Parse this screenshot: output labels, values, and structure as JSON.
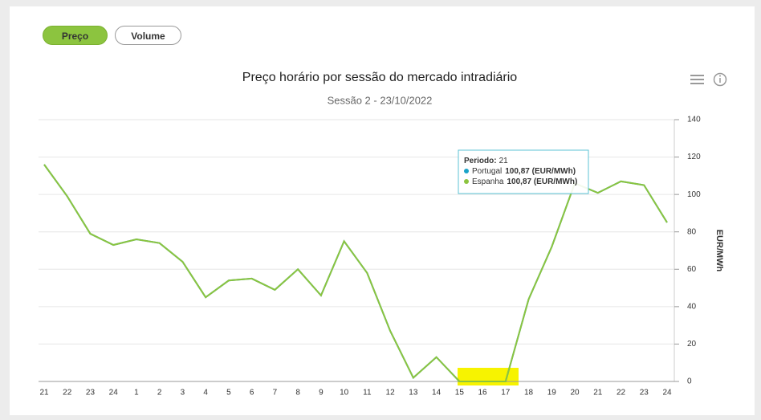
{
  "buttons": [
    "Preço",
    "Volume"
  ],
  "chart_data": {
    "type": "line",
    "title": "Preço horário por sessão do mercado intradiário",
    "subtitle": "Sessão 2 - 23/10/2022",
    "y_axis_label": "EUR/MWh",
    "categories": [
      "21",
      "22",
      "23",
      "24",
      "1",
      "2",
      "3",
      "4",
      "5",
      "6",
      "7",
      "8",
      "9",
      "10",
      "11",
      "12",
      "13",
      "14",
      "15",
      "16",
      "17",
      "18",
      "19",
      "20",
      "21",
      "22",
      "23",
      "24"
    ],
    "series": [
      {
        "name": "Portugal",
        "color": "#1aa3c8",
        "values": [
          116,
          99,
          79,
          73,
          76,
          74,
          64,
          45,
          54,
          55,
          49,
          60,
          46,
          75,
          58,
          27,
          2,
          13,
          0,
          0,
          0,
          44,
          72,
          106,
          100.87,
          107,
          105,
          85
        ]
      },
      {
        "name": "Espanha",
        "color": "#8cc43f",
        "values": [
          116,
          99,
          79,
          73,
          76,
          74,
          64,
          45,
          54,
          55,
          49,
          60,
          46,
          75,
          58,
          27,
          2,
          13,
          0,
          0,
          0,
          44,
          72,
          106,
          100.87,
          107,
          105,
          85
        ]
      }
    ],
    "ylim": [
      0,
      140
    ],
    "yticks": [
      0,
      20,
      40,
      60,
      80,
      100,
      120,
      140
    ],
    "grid": true,
    "tooltip": {
      "label": "Periodo:",
      "category": "21",
      "rows": [
        "100,87 (EUR/MWh)",
        "100,87 (EUR/MWh)"
      ]
    }
  }
}
